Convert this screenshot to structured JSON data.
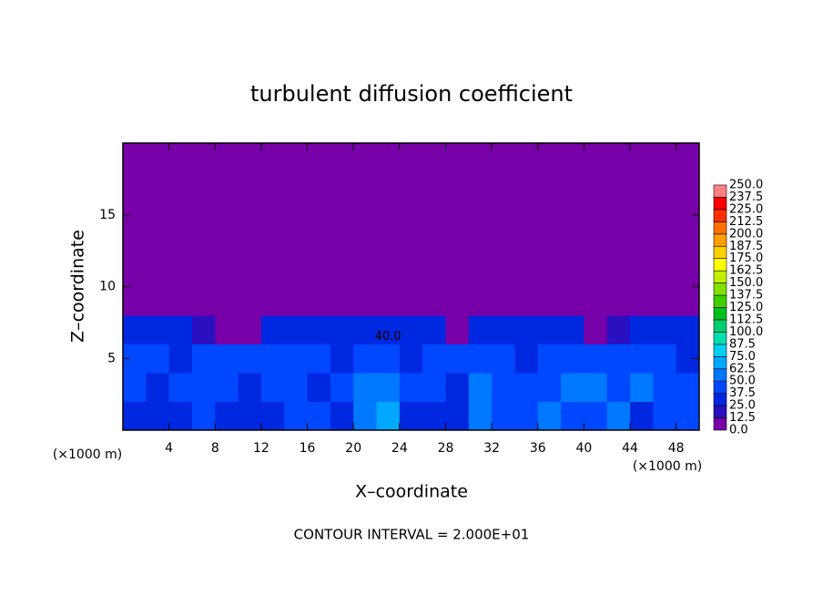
{
  "chart_data": {
    "type": "contour",
    "title": "turbulent diffusion coefficient",
    "xlabel": "X–coordinate",
    "ylabel": "Z–coordinate",
    "x_unit": "(×1000 m)",
    "x_unit_right": "(×1000 m)",
    "footer": "CONTOUR INTERVAL = 2.000E+01",
    "annotations": [
      {
        "text": "40.0",
        "x": 23,
        "y": 6.5
      }
    ],
    "xlim": [
      0,
      50
    ],
    "ylim": [
      0,
      20
    ],
    "xticks": [
      4,
      8,
      12,
      16,
      20,
      24,
      28,
      32,
      36,
      40,
      44,
      48
    ],
    "yticks": [
      5,
      10,
      15
    ],
    "x": [
      1,
      3,
      5,
      7,
      9,
      11,
      13,
      15,
      17,
      19,
      21,
      23,
      25,
      27,
      29,
      31,
      33,
      35,
      37,
      39,
      41,
      43,
      45,
      47,
      49
    ],
    "y": [
      1,
      3,
      5,
      7,
      9,
      11,
      13,
      15,
      17,
      19
    ],
    "values": [
      [
        37,
        25,
        37,
        45,
        37,
        30,
        25,
        45,
        40,
        25,
        55,
        70,
        37,
        37,
        25,
        50,
        45,
        40,
        50,
        45,
        45,
        55,
        37,
        45,
        40
      ],
      [
        40,
        37,
        40,
        45,
        40,
        37,
        45,
        40,
        37,
        45,
        60,
        55,
        40,
        45,
        37,
        55,
        45,
        45,
        40,
        55,
        50,
        45,
        50,
        45,
        40
      ],
      [
        45,
        40,
        37,
        40,
        45,
        40,
        40,
        45,
        40,
        37,
        45,
        40,
        37,
        40,
        45,
        45,
        40,
        37,
        45,
        40,
        45,
        40,
        45,
        40,
        37
      ],
      [
        37,
        30,
        25,
        20,
        12,
        12,
        25,
        37,
        37,
        30,
        25,
        30,
        25,
        25,
        12,
        30,
        37,
        37,
        25,
        37,
        12,
        20,
        37,
        30,
        37
      ],
      [
        0,
        0,
        0,
        0,
        0,
        0,
        0,
        0,
        0,
        0,
        0,
        0,
        0,
        0,
        0,
        0,
        0,
        0,
        0,
        0,
        0,
        0,
        0,
        0,
        0
      ],
      [
        0,
        0,
        0,
        0,
        0,
        0,
        0,
        0,
        0,
        0,
        0,
        0,
        0,
        0,
        0,
        0,
        0,
        0,
        0,
        0,
        0,
        0,
        0,
        0,
        0
      ],
      [
        0,
        0,
        0,
        0,
        0,
        0,
        0,
        0,
        0,
        0,
        0,
        0,
        0,
        0,
        0,
        0,
        0,
        0,
        0,
        0,
        0,
        0,
        0,
        0,
        0
      ],
      [
        0,
        0,
        0,
        0,
        0,
        0,
        0,
        0,
        0,
        0,
        0,
        0,
        0,
        0,
        0,
        0,
        0,
        0,
        0,
        0,
        0,
        0,
        0,
        0,
        0
      ],
      [
        0,
        0,
        0,
        0,
        0,
        0,
        0,
        0,
        0,
        0,
        0,
        0,
        0,
        0,
        0,
        0,
        0,
        0,
        0,
        0,
        0,
        0,
        0,
        0,
        0
      ],
      [
        0,
        0,
        0,
        0,
        0,
        0,
        0,
        0,
        0,
        0,
        0,
        0,
        0,
        0,
        0,
        0,
        0,
        0,
        0,
        0,
        0,
        0,
        0,
        0,
        0
      ]
    ],
    "colorbar": {
      "levels": [
        {
          "value": 0,
          "label": "0.0"
        },
        {
          "value": 12.5,
          "label": "12.5"
        },
        {
          "value": 25,
          "label": "25.0"
        },
        {
          "value": 37.5,
          "label": "37.5"
        },
        {
          "value": 50,
          "label": "50.0"
        },
        {
          "value": 62.5,
          "label": "62.5"
        },
        {
          "value": 75,
          "label": "75.0"
        },
        {
          "value": 87.5,
          "label": "87.5"
        },
        {
          "value": 100,
          "label": "100.0"
        },
        {
          "value": 112.5,
          "label": "112.5"
        },
        {
          "value": 125,
          "label": "125.0"
        },
        {
          "value": 137.5,
          "label": "137.5"
        },
        {
          "value": 150,
          "label": "150.0"
        },
        {
          "value": 162.5,
          "label": "162.5"
        },
        {
          "value": 175,
          "label": "175.0"
        },
        {
          "value": 187.5,
          "label": "187.5"
        },
        {
          "value": 200,
          "label": "200.0"
        },
        {
          "value": 212.5,
          "label": "212.5"
        },
        {
          "value": 225,
          "label": "225.0"
        },
        {
          "value": 237.5,
          "label": "237.5"
        },
        {
          "value": 250,
          "label": "250.0"
        }
      ],
      "colors": [
        "#7800a8",
        "#2a10c0",
        "#0028e0",
        "#0048ff",
        "#0078ff",
        "#00a8ff",
        "#00d0f0",
        "#00e0b0",
        "#00d070",
        "#00c020",
        "#40d000",
        "#80e000",
        "#c0f000",
        "#ffff00",
        "#ffd000",
        "#ffa000",
        "#ff7000",
        "#ff3000",
        "#ff0000",
        "#ff8080"
      ]
    }
  }
}
